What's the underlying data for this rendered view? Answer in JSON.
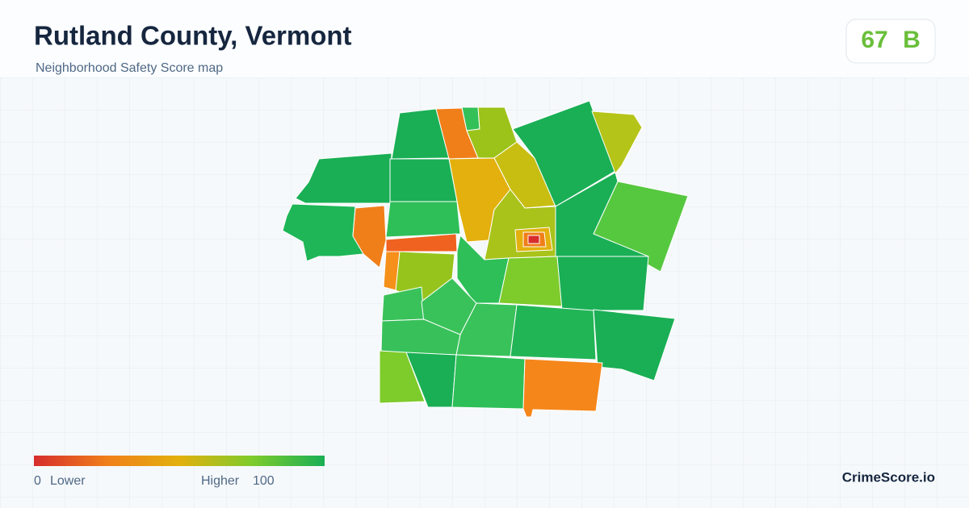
{
  "header": {
    "title": "Rutland County, Vermont",
    "subtitle": "Neighborhood Safety Score map"
  },
  "badge": {
    "score": 67,
    "grade": "B"
  },
  "legend": {
    "min": 0,
    "min_label": "Lower",
    "max_label": "Higher",
    "max": 100
  },
  "brand": "CrimeScore.io"
}
